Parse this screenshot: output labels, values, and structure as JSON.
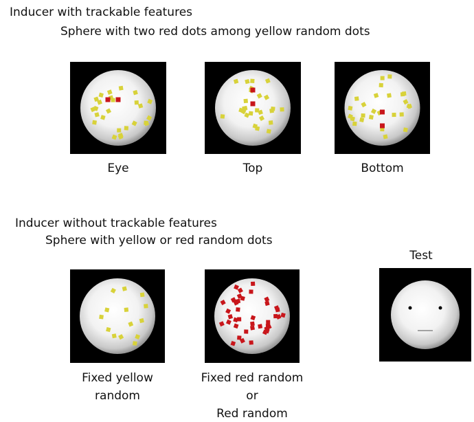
{
  "section1": {
    "title": "Inducer with trackable features",
    "subtitle": "Sphere with two red dots among yellow random dots",
    "panels": [
      {
        "lines": [
          "Eye"
        ]
      },
      {
        "lines": [
          "Top"
        ]
      },
      {
        "lines": [
          "Bottom"
        ]
      }
    ]
  },
  "section2": {
    "title": "Inducer without trackable features",
    "subtitle": "Sphere with yellow or red random dots",
    "panels": [
      {
        "lines": [
          "Fixed yellow",
          "random"
        ]
      },
      {
        "lines": [
          "Fixed red random",
          "or",
          "Red random"
        ]
      }
    ]
  },
  "test": {
    "label": "Test"
  }
}
